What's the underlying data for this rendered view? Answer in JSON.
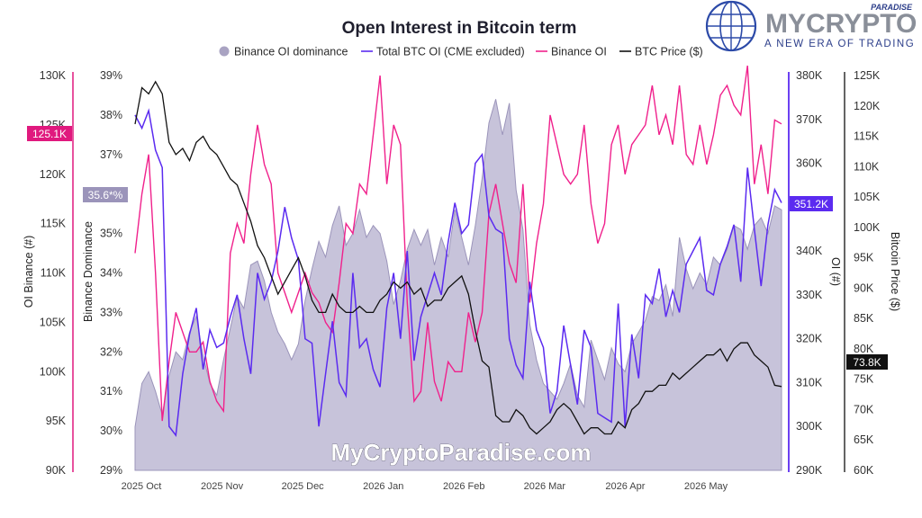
{
  "chart_data": {
    "type": "area",
    "title": "Open Interest in Bitcoin term",
    "legend": [
      {
        "label": "Binance OI dominance",
        "color": "#a9a3c2"
      },
      {
        "label": "Total BTC OI (CME excluded)",
        "color": "#5b2bf0"
      },
      {
        "label": "Binance OI",
        "color": "#f0218c"
      },
      {
        "label": "BTC Price ($)",
        "color": "#111111"
      }
    ],
    "legend_position": "top",
    "x_ticks": [
      "2025 Oct",
      "2025 Nov",
      "2025 Dec",
      "2026 Jan",
      "2026 Feb",
      "2026 Mar",
      "2026 Apr",
      "2026 May"
    ],
    "axes": {
      "oi_binance": {
        "label": "OI Binance (#)",
        "ticks": [
          "90K",
          "95K",
          "100K",
          "105K",
          "110K",
          "115K",
          "120K",
          "125K",
          "130K"
        ],
        "range": [
          90000,
          130000
        ],
        "current_badge": "125.1K",
        "color": "#e0197e"
      },
      "binance_dominance": {
        "label": "Binance Dominance",
        "ticks": [
          "29%",
          "30%",
          "31%",
          "32%",
          "33%",
          "34%",
          "35%",
          "36%",
          "37%",
          "38%",
          "39%"
        ],
        "range": [
          29,
          39
        ],
        "current_badge": "35.6*%",
        "color": "#a9a3c2"
      },
      "oi_total": {
        "label": "OI (#)",
        "ticks": [
          "290K",
          "300K",
          "310K",
          "320K",
          "330K",
          "340K",
          "350K",
          "360K",
          "370K",
          "380K"
        ],
        "range": [
          290000,
          380000
        ],
        "current_badge": "351.2K",
        "color": "#5b2bf0"
      },
      "btc_price": {
        "label": "Bitcoin Price ($)",
        "ticks": [
          "60K",
          "65K",
          "70K",
          "75K",
          "80K",
          "85K",
          "90K",
          "95K",
          "100K",
          "105K",
          "110K",
          "115K",
          "120K",
          "125K"
        ],
        "range": [
          60000,
          125000
        ],
        "current_badge": "73.8K",
        "color": "#111111"
      }
    },
    "series": [
      {
        "name": "Binance OI dominance",
        "axis": "binance_dominance",
        "values": [
          30.1,
          31.2,
          31.5,
          31.0,
          30.4,
          31.4,
          32.0,
          31.8,
          32.5,
          32.9,
          31.9,
          31.2,
          30.9,
          31.8,
          32.6,
          33.4,
          33.1,
          34.2,
          34.3,
          33.8,
          33.0,
          32.5,
          32.2,
          31.8,
          32.2,
          33.3,
          34.1,
          34.8,
          34.4,
          35.2,
          35.7,
          34.7,
          35.0,
          35.6,
          34.9,
          35.2,
          35.0,
          34.3,
          33.2,
          33.8,
          34.6,
          35.1,
          34.7,
          35.1,
          34.2,
          34.9,
          34.4,
          35.6,
          34.9,
          34.2,
          35.2,
          36.4,
          37.8,
          38.4,
          37.5,
          38.3,
          36.1,
          35.1,
          32.7,
          31.8,
          31.2,
          31.0,
          30.8,
          31.2,
          31.7,
          30.9,
          30.6,
          32.3,
          31.8,
          31.3,
          32.1,
          31.7,
          31.5,
          32.2,
          32.5,
          32.8,
          33.4,
          33.3,
          33.7,
          32.9,
          34.9,
          34.1,
          33.6,
          34.0,
          33.7,
          34.4,
          34.2,
          34.6,
          35.2,
          35.1,
          34.6,
          35.2,
          35.4,
          35.0,
          35.7,
          35.6
        ]
      },
      {
        "name": "Total BTC OI (CME excluded)",
        "axis": "oi_total",
        "values": [
          371,
          368,
          372,
          363,
          359,
          300,
          298,
          312,
          321,
          327,
          313,
          322,
          318,
          319,
          325,
          330,
          320,
          312,
          335,
          329,
          333,
          340,
          350,
          343,
          338,
          320,
          319,
          300,
          312,
          324,
          310,
          307,
          335,
          318,
          320,
          313,
          309,
          327,
          335,
          320,
          340,
          315,
          325,
          330,
          335,
          330,
          342,
          351,
          344,
          346,
          360,
          362,
          348,
          345,
          344,
          320,
          314,
          311,
          333,
          322,
          318,
          303,
          308,
          323,
          314,
          305,
          322,
          318,
          303,
          302,
          301,
          328,
          300,
          321,
          311,
          330,
          328,
          336,
          325,
          331,
          326,
          337,
          340,
          343,
          331,
          330,
          337,
          341,
          346,
          333,
          359,
          345,
          332,
          346,
          354,
          351
        ]
      },
      {
        "name": "Binance OI",
        "axis": "oi_binance",
        "values": [
          112,
          118,
          122,
          110,
          95,
          101,
          106,
          104,
          102,
          102,
          103,
          99,
          97,
          96,
          112,
          115,
          113,
          120,
          125,
          121,
          119,
          110,
          108,
          106,
          108,
          110,
          108,
          107,
          105,
          104,
          109,
          115,
          114,
          119,
          118,
          124,
          130,
          119,
          125,
          123,
          107,
          97,
          98,
          105,
          99,
          97,
          101,
          100,
          100,
          106,
          103,
          106,
          116,
          119,
          115,
          111,
          109,
          119,
          107,
          113,
          117,
          126,
          123,
          120,
          119,
          120,
          125,
          117,
          113,
          115,
          123,
          125,
          120,
          123,
          124,
          125,
          129,
          124,
          126,
          123,
          129,
          122,
          121,
          125,
          121,
          124,
          128,
          129,
          127,
          126,
          131,
          119,
          123,
          118,
          125.5,
          125.1
        ]
      },
      {
        "name": "BTC Price ($)",
        "axis": "btc_price",
        "values": [
          117,
          123,
          122,
          124,
          122,
          114,
          112,
          113,
          111,
          114,
          115,
          113,
          112,
          110,
          108,
          107,
          104,
          101,
          97,
          95,
          92,
          89,
          91,
          93,
          95,
          92,
          88,
          86,
          86,
          89,
          87,
          86,
          86,
          87,
          86,
          86,
          88,
          89,
          91,
          90,
          91,
          89,
          90,
          87,
          88,
          88,
          90,
          91,
          92,
          89,
          83,
          78,
          77,
          69,
          68,
          68,
          70,
          69,
          67,
          66,
          67,
          68,
          70,
          71,
          70,
          68,
          66,
          67,
          67,
          66,
          66,
          68,
          67,
          70,
          71,
          73,
          73,
          74,
          74,
          76,
          75,
          76,
          77,
          78,
          79,
          79,
          80,
          78,
          80,
          81,
          81,
          79,
          78,
          77,
          74,
          73.8
        ]
      }
    ]
  },
  "watermark": "MyCryptoParadise.com",
  "logo": {
    "top": "PARADISE",
    "main": "MYCRYPTO",
    "tagline": "A NEW ERA OF TRADING"
  },
  "colors": {
    "accent_pink": "#e0197e",
    "accent_purple": "#5b2bf0",
    "area_fill": "#bdb8d4",
    "line_dark": "#111111"
  }
}
